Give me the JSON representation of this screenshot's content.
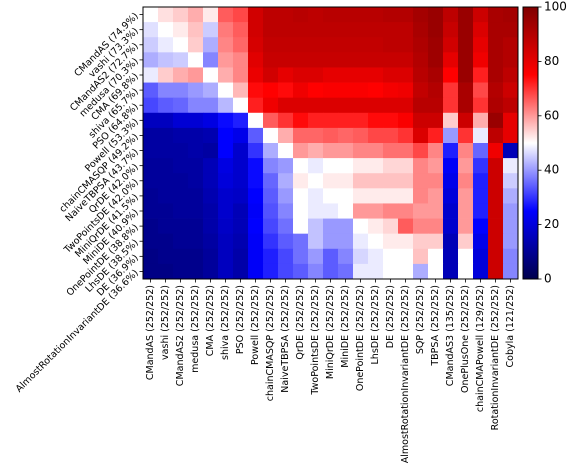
{
  "chart_data": {
    "type": "heatmap",
    "row_labels": [
      "CMandAS (74.9%)",
      "vashi (73.3%)",
      "CMandAS2 (72.7%)",
      "medusa (70.3%)",
      "CMA (69.8%)",
      "shiva (65.7%)",
      "PSO (64.8%)",
      "Powell (53.3%)",
      "chainCMASQP (49.2%)",
      "NaiveTBPSA (43.7%)",
      "QrDE (42.0%)",
      "TwoPointsDE (42.0%)",
      "MiniQrDE (41.5%)",
      "MiniDE (40.9%)",
      "OnePointDE (38.8%)",
      "LhsDE (38.5%)",
      "DE (36.9%)",
      "AlmostRotationInvariantDE (36.6%)"
    ],
    "col_labels": [
      "CMandAS (252/252)",
      "vashi (252/252)",
      "CMandAS2 (252/252)",
      "medusa (252/252)",
      "CMA (252/252)",
      "shiva (252/252)",
      "PSO (252/252)",
      "Powell (252/252)",
      "chainCMASQP (252/252)",
      "NaiveTBPSA (252/252)",
      "QrDE (252/252)",
      "TwoPointsDE (252/252)",
      "MiniQrDE (252/252)",
      "MiniDE (252/252)",
      "OnePointDE (252/252)",
      "LhsDE (252/252)",
      "DE (252/252)",
      "AlmostRotationInvariantDE (252/252)",
      "SQP (252/252)",
      "TBPSA (252/252)",
      "CMandAS3 (135/252)",
      "OnePlusOne (252/252)",
      "chainCMAPowell (129/252)",
      "RotationInvariantDE (252/252)",
      "Cobyla (121/252)"
    ],
    "values": [
      [
        50,
        53,
        55,
        58,
        52,
        66,
        68,
        84,
        88,
        88,
        89,
        88,
        89,
        89,
        89,
        89,
        90,
        90,
        93,
        95,
        88,
        95,
        85,
        92,
        93
      ],
      [
        47,
        50,
        52,
        56,
        45,
        63,
        66,
        84,
        88,
        88,
        88,
        88,
        88,
        88,
        88,
        88,
        88,
        88,
        92,
        95,
        86,
        95,
        82,
        92,
        92
      ],
      [
        45,
        48,
        50,
        55,
        42,
        62,
        65,
        83,
        87,
        87,
        87,
        87,
        87,
        87,
        87,
        87,
        88,
        88,
        91,
        94,
        84,
        95,
        80,
        92,
        90
      ],
      [
        42,
        44,
        45,
        50,
        38,
        60,
        62,
        81,
        86,
        86,
        86,
        86,
        86,
        86,
        86,
        86,
        86,
        86,
        90,
        94,
        80,
        95,
        78,
        92,
        90
      ],
      [
        48,
        55,
        58,
        60,
        50,
        58,
        62,
        79,
        84,
        80,
        82,
        82,
        80,
        80,
        80,
        80,
        82,
        82,
        89,
        92,
        75,
        95,
        72,
        92,
        88
      ],
      [
        34,
        38,
        38,
        40,
        42,
        50,
        57,
        74,
        75,
        74,
        78,
        75,
        76,
        76,
        76,
        75,
        77,
        78,
        87,
        90,
        70,
        92,
        68,
        90,
        85
      ],
      [
        32,
        34,
        35,
        38,
        38,
        43,
        50,
        72,
        78,
        82,
        82,
        82,
        82,
        82,
        82,
        82,
        82,
        82,
        89,
        89,
        70,
        92,
        70,
        91,
        88
      ],
      [
        16,
        16,
        19,
        19,
        21,
        26,
        28,
        50,
        66,
        70,
        74,
        72,
        72,
        72,
        72,
        74,
        74,
        76,
        85,
        85,
        55,
        85,
        58,
        95,
        80
      ],
      [
        12,
        12,
        13,
        13,
        14,
        25,
        22,
        34,
        50,
        58,
        65,
        65,
        66,
        65,
        66,
        68,
        68,
        70,
        82,
        72,
        40,
        70,
        48,
        88,
        80
      ],
      [
        12,
        12,
        12,
        13,
        12,
        25,
        18,
        30,
        42,
        50,
        60,
        58,
        60,
        60,
        62,
        62,
        64,
        64,
        68,
        62,
        28,
        62,
        35,
        78,
        15
      ],
      [
        11,
        11,
        12,
        12,
        15,
        21,
        18,
        26,
        38,
        40,
        50,
        48,
        50,
        50,
        52,
        52,
        54,
        54,
        62,
        60,
        24,
        60,
        30,
        85,
        48
      ],
      [
        11,
        11,
        11,
        12,
        15,
        20,
        18,
        26,
        35,
        42,
        52,
        50,
        52,
        52,
        56,
        56,
        56,
        56,
        62,
        62,
        22,
        62,
        28,
        85,
        45
      ],
      [
        10,
        11,
        11,
        11,
        14,
        18,
        17,
        25,
        34,
        40,
        50,
        48,
        50,
        50,
        52,
        52,
        52,
        52,
        62,
        60,
        20,
        60,
        28,
        85,
        42
      ],
      [
        10,
        10,
        11,
        11,
        13,
        18,
        15,
        24,
        33,
        38,
        50,
        48,
        48,
        50,
        60,
        60,
        62,
        62,
        60,
        60,
        18,
        60,
        28,
        85,
        40
      ],
      [
        9,
        10,
        10,
        10,
        13,
        17,
        15,
        25,
        32,
        36,
        50,
        44,
        40,
        40,
        50,
        52,
        54,
        66,
        62,
        62,
        18,
        60,
        25,
        85,
        40
      ],
      [
        9,
        9,
        10,
        10,
        12,
        16,
        14,
        24,
        30,
        34,
        36,
        44,
        40,
        40,
        48,
        50,
        52,
        52,
        55,
        55,
        15,
        55,
        22,
        85,
        40
      ],
      [
        8,
        9,
        9,
        9,
        11,
        16,
        13,
        24,
        28,
        32,
        36,
        40,
        34,
        38,
        46,
        48,
        50,
        50,
        56,
        50,
        15,
        50,
        20,
        85,
        38
      ],
      [
        8,
        8,
        9,
        9,
        11,
        16,
        13,
        24,
        28,
        32,
        34,
        38,
        34,
        36,
        48,
        48,
        50,
        50,
        42,
        50,
        15,
        50,
        20,
        85,
        38
      ]
    ],
    "colormap": "seismic",
    "vmin": 0,
    "vmax": 100,
    "colorbar_ticks": [
      0,
      20,
      40,
      60,
      80,
      100
    ]
  }
}
